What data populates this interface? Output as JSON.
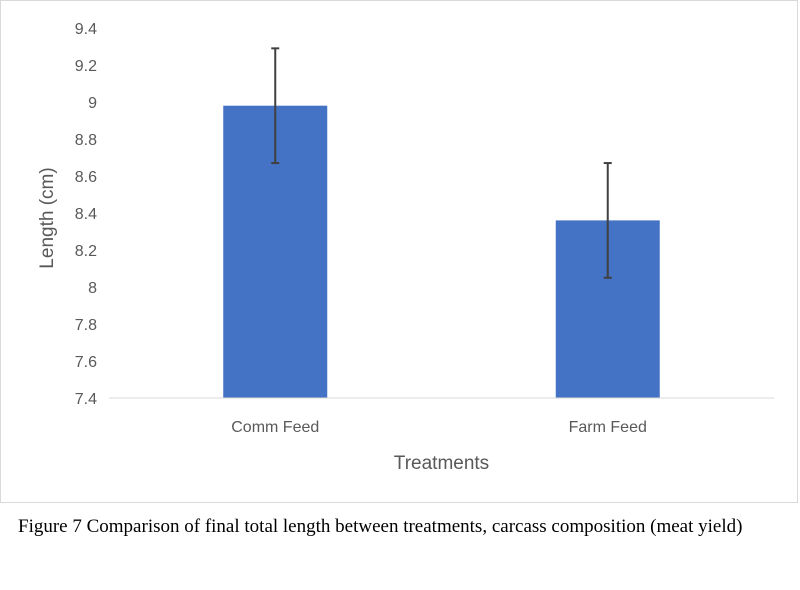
{
  "chart_data": {
    "type": "bar",
    "categories": [
      "Comm Feed",
      "Farm Feed"
    ],
    "values": [
      8.98,
      8.36
    ],
    "error": [
      0.31,
      0.31
    ],
    "xlabel": "Treatments",
    "ylabel": "Length (cm)",
    "ylim": [
      7.4,
      9.4
    ],
    "yticks": [
      "7.4",
      "7.6",
      "7.8",
      "8",
      "8.2",
      "8.4",
      "8.6",
      "8.8",
      "9",
      "9.2",
      "9.4"
    ],
    "grid": false,
    "colors": {
      "bar": "#4472c4",
      "error_bar": "#404040",
      "axis": "#d9d9d9"
    }
  },
  "caption": "Figure 7 Comparison of final total length between treatments, carcass composition (meat yield)"
}
